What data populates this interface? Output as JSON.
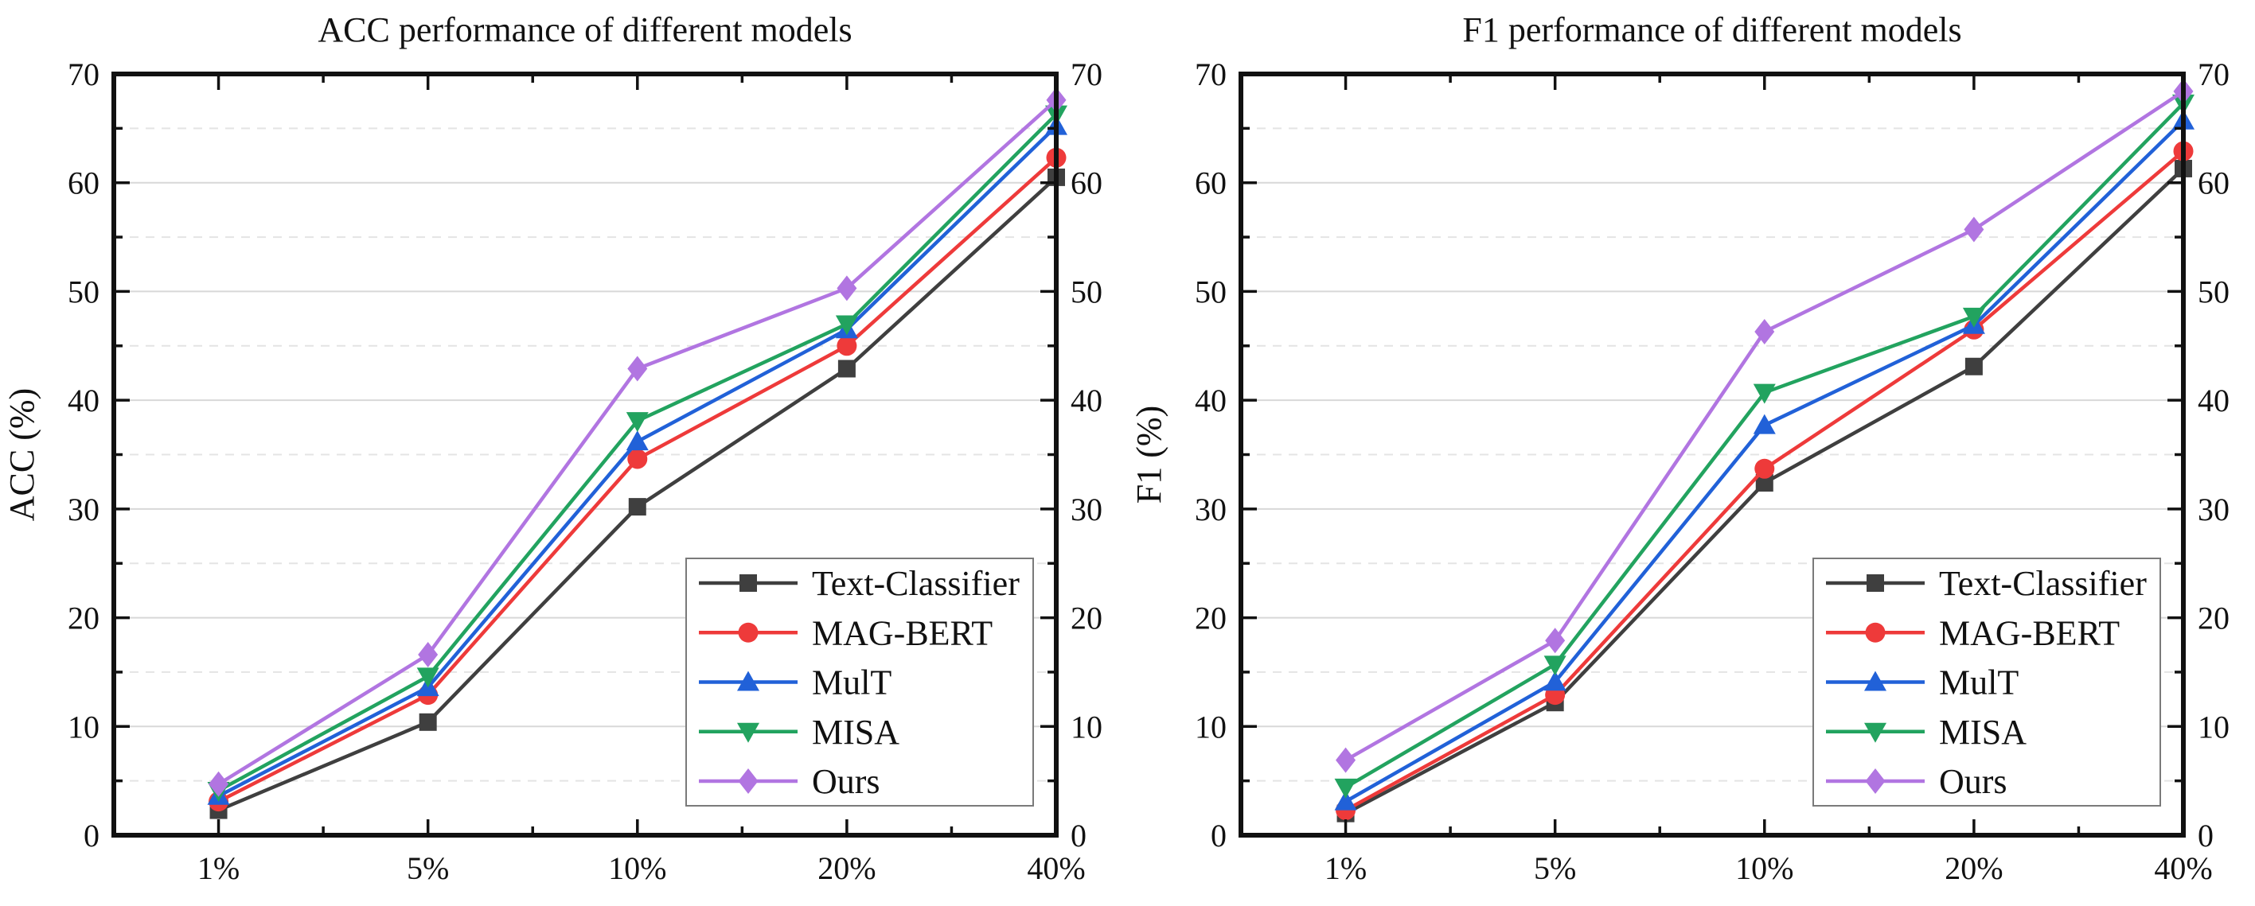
{
  "page": {
    "background": "#ffffff",
    "text_color": "#111111"
  },
  "chart_data": [
    {
      "type": "line",
      "title": "ACC performance of different models",
      "ylabel": "ACC (%)",
      "xlabel": "",
      "categories": [
        "1%",
        "5%",
        "10%",
        "20%",
        "40%"
      ],
      "ylim": [
        0,
        70
      ],
      "y_major_ticks": [
        0,
        10,
        20,
        30,
        40,
        50,
        60,
        70
      ],
      "y_minor_ticks": [
        5,
        15,
        25,
        35,
        45,
        55,
        65
      ],
      "grid": "major horizontal solid, minor horizontal dashed",
      "legend_position": "lower right",
      "tick_labels_both_sides": true,
      "series": [
        {
          "name": "Text-Classifier",
          "color": "#3f3f3f",
          "marker": "square",
          "values": [
            2.3,
            10.4,
            30.2,
            42.9,
            60.5
          ]
        },
        {
          "name": "MAG-BERT",
          "color": "#ee3a3a",
          "marker": "circle",
          "values": [
            3.1,
            12.9,
            34.6,
            45.0,
            62.3
          ]
        },
        {
          "name": "MulT",
          "color": "#2161d8",
          "marker": "triangle-up",
          "values": [
            3.6,
            13.6,
            36.2,
            46.5,
            65.2
          ]
        },
        {
          "name": "MISA",
          "color": "#22a35f",
          "marker": "triangle-down",
          "values": [
            4.1,
            14.6,
            38.1,
            47.0,
            66.3
          ]
        },
        {
          "name": "Ours",
          "color": "#b175e1",
          "marker": "diamond",
          "values": [
            4.7,
            16.6,
            42.9,
            50.3,
            67.6
          ]
        }
      ]
    },
    {
      "type": "line",
      "title": "F1 performance of different models",
      "ylabel": "F1 (%)",
      "xlabel": "",
      "categories": [
        "1%",
        "5%",
        "10%",
        "20%",
        "40%"
      ],
      "ylim": [
        0,
        70
      ],
      "y_major_ticks": [
        0,
        10,
        20,
        30,
        40,
        50,
        60,
        70
      ],
      "y_minor_ticks": [
        5,
        15,
        25,
        35,
        45,
        55,
        65
      ],
      "grid": "major horizontal solid, minor horizontal dashed",
      "legend_position": "lower right",
      "tick_labels_both_sides": true,
      "series": [
        {
          "name": "Text-Classifier",
          "color": "#3f3f3f",
          "marker": "square",
          "values": [
            2.0,
            12.2,
            32.4,
            43.1,
            61.3
          ]
        },
        {
          "name": "MAG-BERT",
          "color": "#ee3a3a",
          "marker": "circle",
          "values": [
            2.3,
            12.9,
            33.7,
            46.5,
            62.9
          ]
        },
        {
          "name": "MulT",
          "color": "#2161d8",
          "marker": "triangle-up",
          "values": [
            3.1,
            14.1,
            37.7,
            46.9,
            65.7
          ]
        },
        {
          "name": "MISA",
          "color": "#22a35f",
          "marker": "triangle-down",
          "values": [
            4.4,
            15.7,
            40.7,
            47.7,
            67.3
          ]
        },
        {
          "name": "Ours",
          "color": "#b175e1",
          "marker": "diamond",
          "values": [
            6.9,
            17.9,
            46.3,
            55.7,
            68.4
          ]
        }
      ]
    }
  ],
  "style": {
    "grid_major_color": "#d8d8d8",
    "grid_minor_color": "#e4e4e4",
    "spine_color": "#111111",
    "legend_border_color": "#7a7a7a",
    "legend_background": "#ffffff"
  }
}
